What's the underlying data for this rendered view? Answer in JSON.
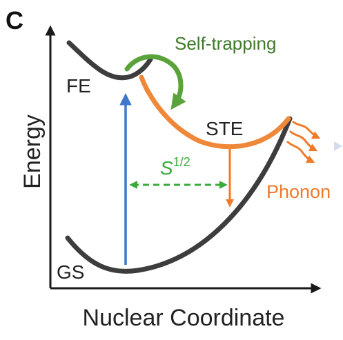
{
  "panel_label": "C",
  "axes": {
    "x_label": "Nuclear Coordinate",
    "y_label": "Energy"
  },
  "curves": {
    "fe_label": "FE",
    "ste_label": "STE",
    "gs_label": "GS"
  },
  "annotations": {
    "self_trapping": "Self-trapping",
    "displacement_base": "S",
    "displacement_exponent": "1/2",
    "phonon": "Phonon"
  },
  "colors": {
    "curve_dark": "#3d3d3d",
    "ste_orange": "#f0883a",
    "phonon_orange": "#f07a2a",
    "self_trapping_green": "#5aa33a",
    "self_trapping_text": "#3f7a2a",
    "absorption_blue": "#3f78c8",
    "displacement_green": "#3aaa3a",
    "axis": "#1a1a1a"
  }
}
